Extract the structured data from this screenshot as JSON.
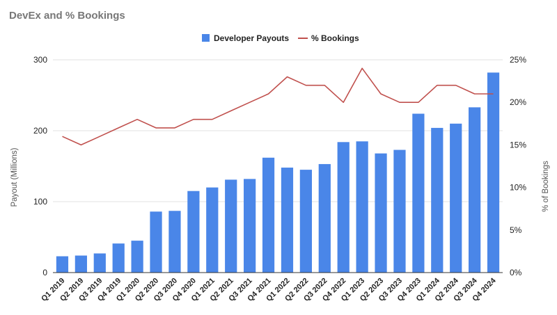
{
  "chart_data": {
    "type": "bar",
    "title": "DevEx and % Bookings",
    "categories": [
      "Q1 2019",
      "Q2 2019",
      "Q3 2019",
      "Q4 2019",
      "Q1 2020",
      "Q2 2020",
      "Q3 2020",
      "Q4 2020",
      "Q1 2021",
      "Q2 2021",
      "Q3 2021",
      "Q4 2021",
      "Q1 2022",
      "Q2 2022",
      "Q3 2022",
      "Q4 2022",
      "Q1 2023",
      "Q2 2023",
      "Q3 2023",
      "Q4 2023",
      "Q1 2024",
      "Q2 2024",
      "Q3 2024",
      "Q4 2024"
    ],
    "series": [
      {
        "name": "Developer Payouts",
        "type": "bar",
        "axis": "left",
        "color": "#4a86e8",
        "values": [
          23,
          24,
          27,
          41,
          45,
          86,
          87,
          115,
          120,
          131,
          132,
          162,
          148,
          145,
          153,
          184,
          185,
          168,
          173,
          224,
          204,
          210,
          233,
          282
        ]
      },
      {
        "name": "% Bookings",
        "type": "line",
        "axis": "right",
        "color": "#c0504d",
        "values": [
          16,
          15,
          16,
          17,
          18,
          17,
          17,
          18,
          18,
          19,
          20,
          21,
          23,
          22,
          22,
          20,
          24,
          21,
          20,
          20,
          22,
          22,
          21,
          21
        ]
      }
    ],
    "ylabel": "Payout (Millions)",
    "ylabel_right": "% of Bookings",
    "ylim": [
      0,
      300
    ],
    "yticks": [
      "0",
      "100",
      "200",
      "300"
    ],
    "ylim_right": [
      0,
      25
    ],
    "yticks_right": [
      "0%",
      "5%",
      "10%",
      "15%",
      "20%",
      "25%"
    ],
    "legend_position": "top-center",
    "grid": true
  }
}
